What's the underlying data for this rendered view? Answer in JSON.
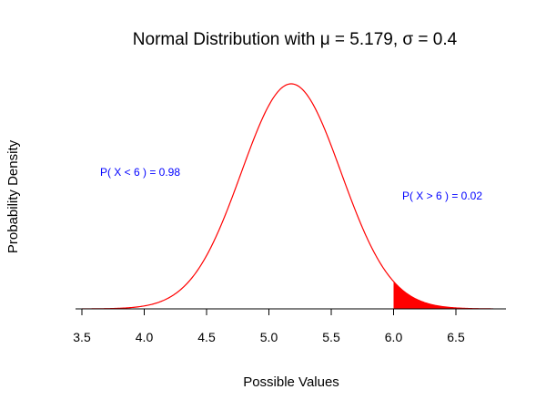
{
  "chart_data": {
    "type": "area",
    "title": "Normal Distribution with μ = 5.179, σ = 0.4",
    "xlabel": "Possible Values",
    "ylabel": "Probability Density",
    "mean": 5.179,
    "sd": 0.4,
    "xlim": [
      3.5,
      6.8
    ],
    "x_ticks": [
      3.5,
      4.0,
      4.5,
      5.0,
      5.5,
      6.0,
      6.5
    ],
    "x_tick_labels": [
      "3.5",
      "4.0",
      "4.5",
      "5.0",
      "5.5",
      "6.0",
      "6.5"
    ],
    "shaded_region": {
      "from": 6.0,
      "to": 6.8
    },
    "series": [
      {
        "curve_color": "#ff0000",
        "fill_color": "#ff0000"
      }
    ],
    "annotations": [
      {
        "text": "P( X < 6 ) = 0.98",
        "color": "#0000ff"
      },
      {
        "text": "P( X > 6 ) = 0.02",
        "color": "#0000ff"
      }
    ],
    "grid": false,
    "legend": "none"
  }
}
